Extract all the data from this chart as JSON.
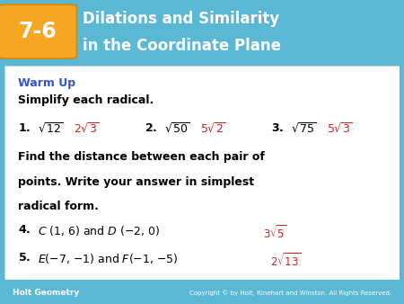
{
  "header_bg_color": "#5BB8D4",
  "header_text_color": "#FFFFFF",
  "header_label": "7-6",
  "header_label_bg": "#F5A623",
  "header_title_line1": "Dilations and Similarity",
  "header_title_line2": "in the Coordinate Plane",
  "footer_bg_color": "#5BB8D4",
  "footer_left_text": "Holt Geometry",
  "footer_right_text": "Copyright © by Holt, Rinehart and Winston. All Rights Reserved.",
  "footer_text_color": "#FFFFFF",
  "warm_up_color": "#3355CC",
  "answer_color": "#CC2222",
  "warm_up_label": "Warm Up"
}
